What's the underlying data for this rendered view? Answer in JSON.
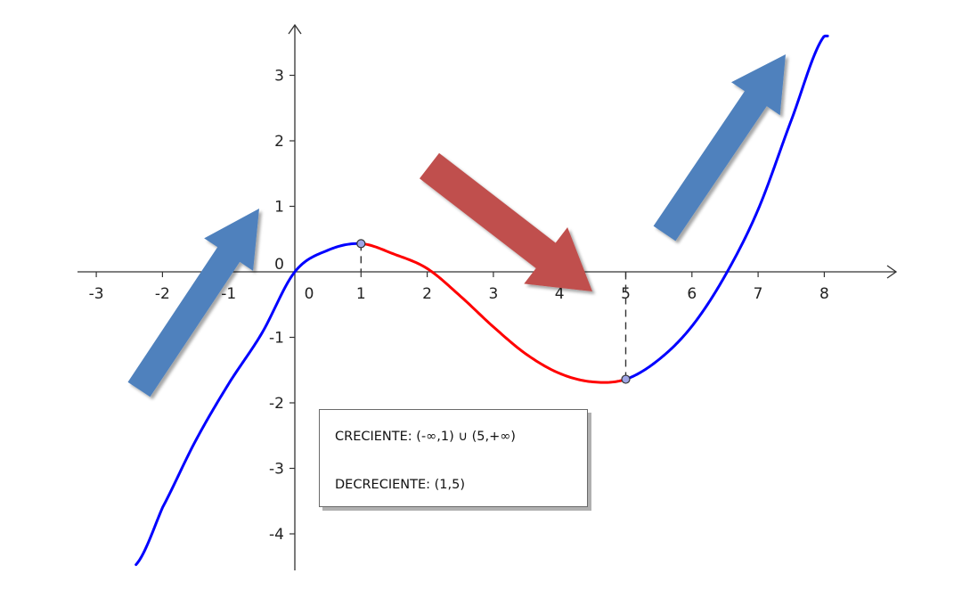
{
  "chart_data": {
    "type": "line",
    "function_samples": {
      "x": [
        -2.4,
        -2.0,
        -1.5,
        -1.0,
        -0.5,
        0.0,
        0.5,
        1.0,
        1.5,
        2.0,
        2.5,
        3.0,
        3.5,
        4.0,
        4.5,
        5.0,
        5.5,
        6.0,
        6.5,
        7.0,
        7.5,
        8.0
      ],
      "y": [
        -4.47,
        -3.6,
        -2.58,
        -1.71,
        -0.94,
        0.0,
        0.33,
        0.43,
        0.27,
        0.05,
        -0.37,
        -0.84,
        -1.26,
        -1.55,
        -1.68,
        -1.64,
        -1.34,
        -0.83,
        -0.06,
        0.95,
        2.31,
        3.6
      ]
    },
    "series": [
      {
        "name": "",
        "segment": "increasing",
        "x_range": [
          -2.4,
          1
        ],
        "color": "#0000ff"
      },
      {
        "name": "",
        "segment": "decreasing",
        "x_range": [
          1,
          5
        ],
        "color": "#ff0000"
      },
      {
        "name": "",
        "segment": "increasing",
        "x_range": [
          5,
          8.05
        ],
        "color": "#0000ff"
      }
    ],
    "critical_points": [
      {
        "x": 1,
        "y": 0.43
      },
      {
        "x": 5,
        "y": -1.64
      }
    ],
    "xlim": [
      -3.3,
      8.9
    ],
    "ylim": [
      -4.6,
      3.8
    ],
    "x_ticks": [
      "-3",
      "-2",
      "-1",
      "0",
      "1",
      "2",
      "3",
      "4",
      "5",
      "6",
      "7",
      "8"
    ],
    "y_ticks": [
      "3",
      "2",
      "1",
      "0",
      "-1",
      "-2",
      "-3",
      "-4"
    ],
    "arrows": [
      {
        "meaning": "increasing",
        "color": "#4f81bd"
      },
      {
        "meaning": "decreasing",
        "color": "#c0504d"
      },
      {
        "meaning": "increasing",
        "color": "#4f81bd"
      }
    ],
    "grid": false,
    "info_box": {
      "line1": "CRECIENTE: (-∞,1) ∪ (5,+∞)",
      "line2": "DECRECIENTE: (1,5)"
    }
  }
}
